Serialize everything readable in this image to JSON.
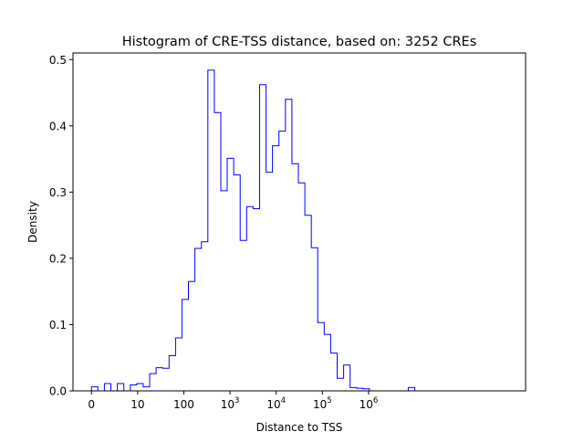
{
  "chart_data": {
    "type": "histogram",
    "title": "Histogram of CRE-TSS distance, based on: 3252 CREs",
    "xlabel": "Distance to TSS",
    "ylabel": "Density",
    "x_scale": "symlog",
    "xlim": [
      -0.4,
      9.4
    ],
    "ylim": [
      0,
      0.51
    ],
    "grid": false,
    "legend": "none",
    "line_color": "#0000ff",
    "x_ticks": [
      {
        "value": 0,
        "base": "0",
        "exp": ""
      },
      {
        "value": 1,
        "base": "10",
        "exp": ""
      },
      {
        "value": 2,
        "base": "100",
        "exp": ""
      },
      {
        "value": 3,
        "base": "10",
        "exp": "3"
      },
      {
        "value": 4,
        "base": "10",
        "exp": "4"
      },
      {
        "value": 5,
        "base": "10",
        "exp": "5"
      },
      {
        "value": 6,
        "base": "10",
        "exp": "6"
      }
    ],
    "y_ticks": [
      "0.0",
      "0.1",
      "0.2",
      "0.3",
      "0.4",
      "0.5"
    ],
    "bin_edges": [
      0,
      0.14,
      0.28,
      0.42,
      0.56,
      0.7,
      0.84,
      0.98,
      1.12,
      1.26,
      1.4,
      1.54,
      1.68,
      1.82,
      1.96,
      2.1,
      2.24,
      2.38,
      2.52,
      2.66,
      2.8,
      2.94,
      3.08,
      3.22,
      3.36,
      3.5,
      3.64,
      3.78,
      3.92,
      4.06,
      4.2,
      4.34,
      4.48,
      4.62,
      4.76,
      4.9,
      5.04,
      5.18,
      5.32,
      5.46,
      5.6,
      5.74,
      5.88,
      6.02,
      6.16,
      6.3,
      6.44,
      6.58,
      6.72,
      6.86,
      7.0
    ],
    "densities": [
      0.006,
      0.0,
      0.011,
      0.0,
      0.011,
      0.0,
      0.009,
      0.011,
      0.006,
      0.026,
      0.035,
      0.034,
      0.053,
      0.08,
      0.138,
      0.165,
      0.215,
      0.225,
      0.484,
      0.42,
      0.302,
      0.351,
      0.326,
      0.227,
      0.278,
      0.275,
      0.462,
      0.33,
      0.37,
      0.392,
      0.44,
      0.343,
      0.314,
      0.265,
      0.216,
      0.103,
      0.085,
      0.057,
      0.019,
      0.039,
      0.005,
      0.004,
      0.003,
      0.0,
      0.0,
      0.0,
      0.0,
      0.0,
      0.0,
      0.005
    ]
  }
}
